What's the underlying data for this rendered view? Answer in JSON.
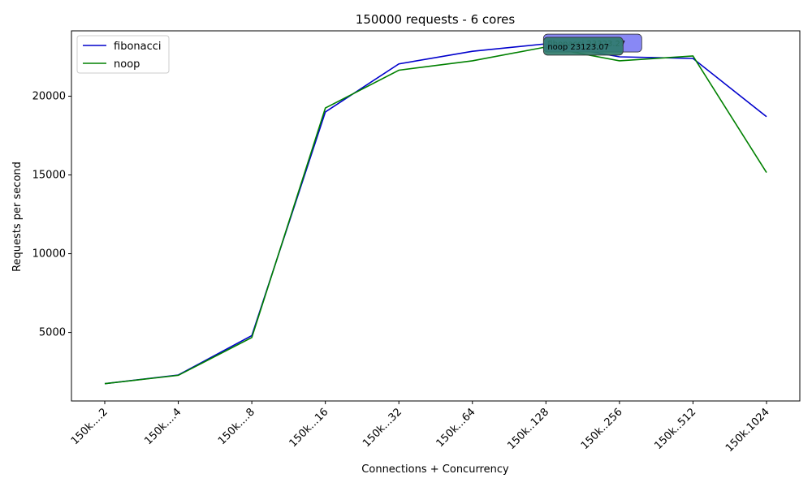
{
  "chart_data": {
    "type": "line",
    "title": "150000 requests - 6 cores",
    "xlabel": "Connections + Concurrency",
    "ylabel": "Requests per second",
    "categories": [
      "150k....2",
      "150k....4",
      "150k....8",
      "150k...16",
      "150k...32",
      "150k...64",
      "150k..128",
      "150k..256",
      "150k..512",
      "150k.1024"
    ],
    "ylim": [
      650,
      24150
    ],
    "yticks": [
      5000,
      10000,
      15000,
      20000
    ],
    "grid": false,
    "legend_position": "upper-left",
    "series": [
      {
        "name": "fibonacci",
        "color": "#0000cc",
        "values": [
          1750,
          2300,
          4800,
          19000,
          22050,
          22850,
          23323.27,
          22500,
          22400,
          18700
        ]
      },
      {
        "name": "noop",
        "color": "#008000",
        "values": [
          1750,
          2280,
          4680,
          19250,
          21650,
          22250,
          23123.07,
          22250,
          22550,
          15150
        ]
      }
    ],
    "annotations": [
      {
        "text": "fibonacci 23323.27",
        "series": "fibonacci",
        "category": "150k..128",
        "background": "#7b7bf4"
      },
      {
        "text": "noop 23123.07",
        "series": "noop",
        "category": "150k..128",
        "background": "#2e7b6b"
      }
    ]
  }
}
